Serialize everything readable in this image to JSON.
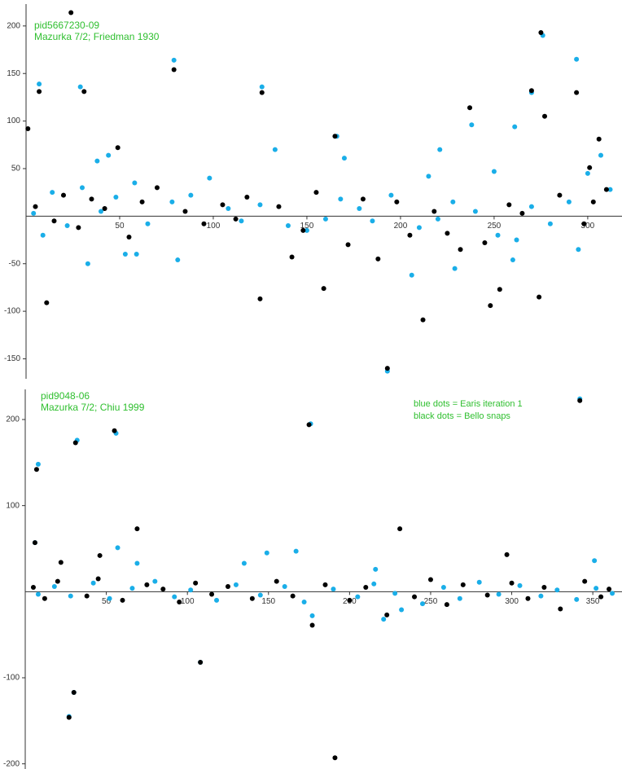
{
  "chart_data": [
    {
      "type": "scatter",
      "title": "pid5667230-09",
      "subtitle": "Mazurka 7/2; Friedman 1930",
      "xlim": [
        0,
        317
      ],
      "ylim": [
        -171,
        223
      ],
      "xticks": [
        50,
        100,
        150,
        200,
        250,
        300
      ],
      "yticks": [
        -150,
        -100,
        -50,
        50,
        100,
        150,
        200
      ],
      "series": [
        {
          "color": "#1aaee8",
          "x": [
            7,
            29,
            33,
            79,
            81,
            126,
            133,
            166,
            170,
            193,
            206,
            215,
            221,
            229,
            238,
            250,
            260,
            261,
            270,
            276,
            294,
            295,
            307,
            53,
            59,
            38,
            44,
            9,
            4,
            14,
            22,
            30,
            40,
            48,
            58,
            65,
            78,
            88,
            98,
            108,
            115,
            125,
            140,
            150,
            160,
            168,
            178,
            185,
            195,
            210,
            220,
            228,
            240,
            252,
            262,
            270,
            280,
            290,
            300,
            312
          ],
          "values": [
            139,
            136,
            -50,
            164,
            -46,
            136,
            70,
            84,
            61,
            -163,
            -62,
            42,
            70,
            -55,
            96,
            47,
            -46,
            94,
            130,
            190,
            165,
            -35,
            64,
            -40,
            -40,
            58,
            64,
            -20,
            3,
            25,
            -10,
            30,
            5,
            20,
            35,
            -8,
            15,
            22,
            40,
            8,
            -5,
            12,
            -10,
            -15,
            -3,
            18,
            8,
            -5,
            22,
            -12,
            -3,
            15,
            5,
            -20,
            -25,
            10,
            -8,
            15,
            45,
            28
          ]
        },
        {
          "color": "#000000",
          "x": [
            1,
            7,
            11,
            24,
            31,
            49,
            79,
            126,
            125,
            142,
            159,
            165,
            193,
            212,
            237,
            248,
            253,
            270,
            274,
            275,
            277,
            294,
            306,
            301,
            5,
            15,
            20,
            28,
            35,
            42,
            55,
            62,
            70,
            85,
            95,
            105,
            112,
            118,
            135,
            148,
            155,
            172,
            180,
            188,
            198,
            205,
            218,
            225,
            232,
            245,
            258,
            265,
            285,
            298,
            303,
            310
          ],
          "values": [
            92,
            131,
            -91,
            214,
            131,
            72,
            154,
            130,
            -87,
            -43,
            -76,
            84,
            -160,
            -109,
            114,
            -94,
            -77,
            132,
            -85,
            193,
            105,
            130,
            81,
            51,
            10,
            -5,
            22,
            -12,
            18,
            8,
            -22,
            15,
            30,
            5,
            -8,
            12,
            -3,
            20,
            10,
            -15,
            25,
            -30,
            18,
            -45,
            15,
            -20,
            5,
            -18,
            -35,
            -28,
            12,
            3,
            22,
            -8,
            15,
            28
          ]
        }
      ]
    },
    {
      "type": "scatter",
      "title": "pid9048-06",
      "subtitle": "Mazurka 7/2; Chiu 1999",
      "xlim": [
        0,
        368
      ],
      "ylim": [
        -206,
        235
      ],
      "xticks": [
        50,
        100,
        150,
        200,
        250,
        300,
        350
      ],
      "yticks": [
        -200,
        -100,
        100,
        200
      ],
      "series": [
        {
          "name": "blue dots = Earis iteration 1",
          "color": "#1aaee8",
          "x": [
            8,
            6,
            32,
            30,
            27,
            56,
            57,
            69,
            108,
            176,
            149,
            167,
            177,
            221,
            232,
            342,
            351,
            216,
            135,
            8,
            18,
            28,
            42,
            52,
            66,
            80,
            92,
            102,
            118,
            130,
            145,
            160,
            172,
            190,
            205,
            215,
            228,
            245,
            258,
            268,
            280,
            292,
            305,
            318,
            328,
            340,
            352,
            362
          ],
          "values": [
            148,
            57,
            176,
            -117,
            -145,
            184,
            51,
            33,
            -82,
            195,
            45,
            47,
            -28,
            -32,
            -21,
            224,
            36,
            26,
            33,
            -3,
            6,
            -5,
            10,
            -8,
            4,
            12,
            -6,
            2,
            -10,
            8,
            -4,
            6,
            -12,
            3,
            -6,
            9,
            -2,
            -14,
            5,
            -8,
            11,
            -3,
            7,
            -5,
            2,
            -9,
            4,
            -2
          ]
        },
        {
          "name": "black dots = Bello snaps",
          "color": "#000000",
          "x": [
            7,
            6,
            31,
            30,
            27,
            55,
            69,
            108,
            175,
            191,
            231,
            223,
            177,
            342,
            297,
            22,
            46,
            5,
            12,
            20,
            38,
            45,
            60,
            75,
            85,
            95,
            105,
            115,
            125,
            140,
            155,
            165,
            185,
            200,
            210,
            240,
            250,
            260,
            270,
            285,
            300,
            310,
            320,
            330,
            345,
            355,
            360
          ],
          "values": [
            142,
            57,
            173,
            -117,
            -146,
            187,
            73,
            -82,
            194,
            -193,
            73,
            -27,
            -39,
            222,
            43,
            34,
            42,
            5,
            -8,
            12,
            -5,
            15,
            -10,
            8,
            3,
            -12,
            10,
            -3,
            6,
            -8,
            12,
            -5,
            8,
            -10,
            5,
            -6,
            14,
            -15,
            8,
            -4,
            10,
            -8,
            5,
            -20,
            12,
            -6,
            3
          ]
        }
      ]
    }
  ]
}
